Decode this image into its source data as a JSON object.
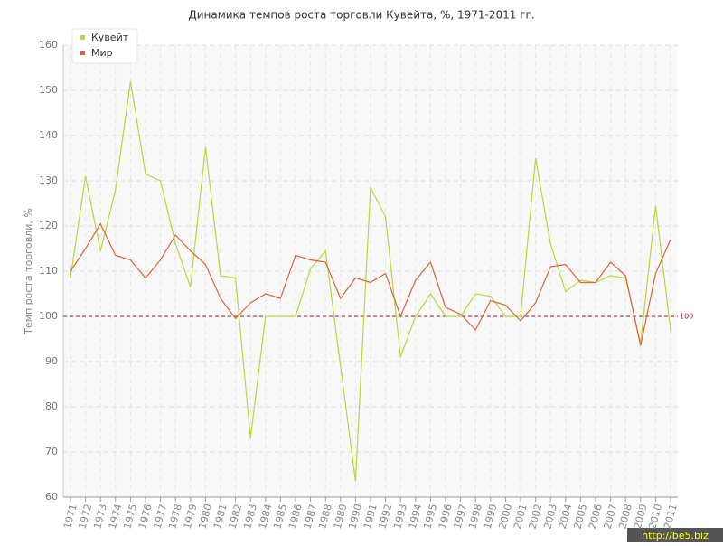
{
  "chart_data": {
    "type": "line",
    "title": "Динамика темпов роста торговли Кувейта, %, 1971-2011 гг.",
    "y_label": "Темп роста торговли, %",
    "categories": [
      "1971",
      "1972",
      "1973",
      "1974",
      "1975",
      "1976",
      "1977",
      "1978",
      "1979",
      "1980",
      "1981",
      "1982",
      "1983",
      "1984",
      "1985",
      "1986",
      "1987",
      "1988",
      "1989",
      "1990",
      "1991",
      "1992",
      "1993",
      "1994",
      "1995",
      "1996",
      "1997",
      "1998",
      "1999",
      "2000",
      "2001",
      "2002",
      "2003",
      "2004",
      "2005",
      "2006",
      "2007",
      "2008",
      "2009",
      "2010",
      "2011"
    ],
    "series": [
      {
        "name": "Кувейт",
        "color": "#bcd53c",
        "values": [
          108.5,
          131,
          114.5,
          128,
          152,
          131.5,
          130,
          116,
          106.5,
          137.5,
          109,
          108.5,
          73,
          100,
          100,
          100,
          110.5,
          114.5,
          89,
          63.5,
          128.5,
          122,
          91,
          100,
          105,
          100,
          100,
          105,
          104.5,
          100,
          100,
          135,
          116,
          105.5,
          108,
          107.5,
          109,
          108.5,
          94,
          124.5,
          97
        ]
      },
      {
        "name": "Мир",
        "color": "#d9663a",
        "values": [
          110,
          115,
          120.5,
          113.5,
          112.5,
          108.5,
          112.5,
          118,
          114.5,
          111.5,
          104,
          99.5,
          103,
          105,
          104,
          113.5,
          112.5,
          112,
          104,
          108.5,
          107.5,
          109.5,
          100,
          108,
          112,
          102,
          100.5,
          97,
          103.5,
          102.5,
          99,
          103,
          111,
          111.5,
          107.5,
          107.5,
          112,
          109,
          93.5,
          109.5,
          117
        ]
      }
    ],
    "ylim": [
      60,
      160
    ],
    "yticks": [
      60,
      70,
      80,
      90,
      100,
      110,
      120,
      130,
      140,
      150,
      160
    ],
    "grid": true,
    "legend": "top-left",
    "reference_line": 100,
    "reference_color": "#8b2040",
    "watermark": "http://be5.biz"
  }
}
